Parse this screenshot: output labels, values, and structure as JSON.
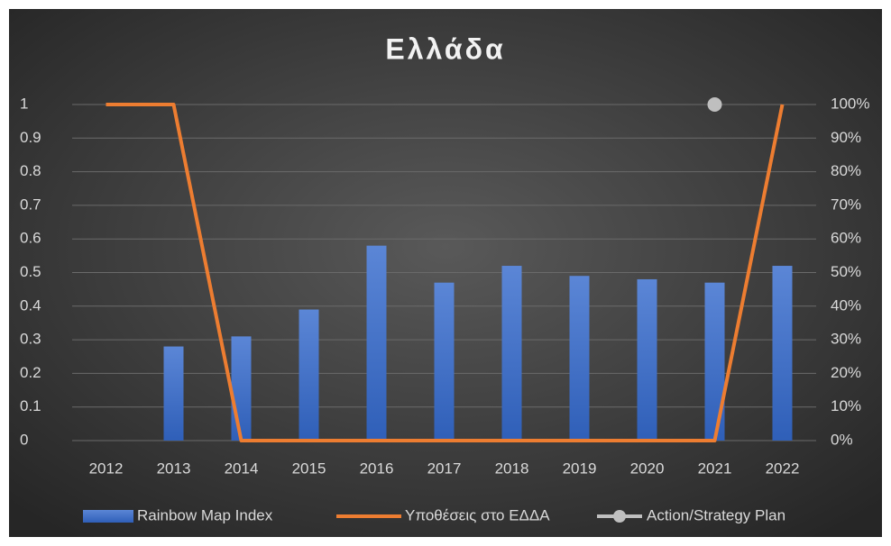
{
  "chart_data": {
    "type": "bar",
    "title": "Ελλάδα",
    "categories": [
      "2012",
      "2013",
      "2014",
      "2015",
      "2016",
      "2017",
      "2018",
      "2019",
      "2020",
      "2021",
      "2022"
    ],
    "series": [
      {
        "name": "Rainbow Map Index",
        "type": "bar",
        "color": "#4472c4",
        "values": [
          null,
          0.28,
          0.31,
          0.39,
          0.58,
          0.47,
          0.52,
          0.49,
          0.48,
          0.47,
          0.52
        ]
      },
      {
        "name": "Υποθέσεις στο ΕΔΔΑ",
        "type": "line",
        "axis": "y2",
        "color": "#ed7d31",
        "values": [
          100,
          100,
          0,
          0,
          0,
          0,
          0,
          0,
          0,
          0,
          100
        ]
      },
      {
        "name": "Action/Strategy Plan",
        "type": "scatter",
        "axis": "y2",
        "color": "#bfbfbf",
        "values": [
          null,
          null,
          null,
          null,
          null,
          null,
          null,
          null,
          null,
          100,
          null
        ]
      }
    ],
    "ylim": [
      0,
      1
    ],
    "yticks": [
      0,
      0.1,
      0.2,
      0.3,
      0.4,
      0.5,
      0.6,
      0.7,
      0.8,
      0.9,
      1
    ],
    "y2lim": [
      0,
      100
    ],
    "y2ticks": [
      {
        "value": 0,
        "label": "0%"
      },
      {
        "value": 10,
        "label": "10%"
      },
      {
        "value": 20,
        "label": "20%"
      },
      {
        "value": 30,
        "label": "30%"
      },
      {
        "value": 40,
        "label": "40%"
      },
      {
        "value": 50,
        "label": "50%"
      },
      {
        "value": 60,
        "label": "60%"
      },
      {
        "value": 70,
        "label": "70%"
      },
      {
        "value": 80,
        "label": "80%"
      },
      {
        "value": 90,
        "label": "90%"
      },
      {
        "value": 100,
        "label": "100%"
      }
    ],
    "grid": true,
    "legend": "bottom"
  }
}
